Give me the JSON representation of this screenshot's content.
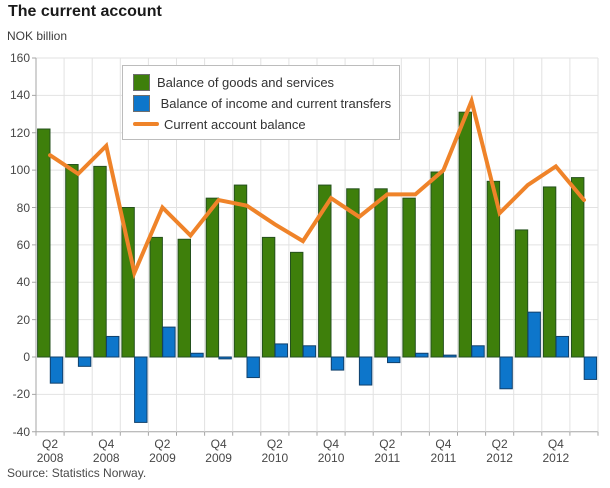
{
  "header": {
    "title": "The current account",
    "unit_label": "NOK billion",
    "source": "Source: Statistics Norway."
  },
  "colors": {
    "goods_services_bar": "#3e7f0b",
    "goods_services_border": "#24511d",
    "income_transfers_bar": "#0d76cb",
    "income_transfers_border": "#11406b",
    "current_account_line": "#ef8329",
    "gridline": "#e2e2e2",
    "axis": "#a6a6a6",
    "tick_text": "#474747",
    "background": "#ffffff"
  },
  "chart_data": {
    "type": "bar",
    "title": "The current account",
    "ylabel": "NOK billion",
    "xlabel": "",
    "ylim": [
      -40,
      160
    ],
    "yticks": [
      160,
      140,
      120,
      100,
      80,
      60,
      40,
      20,
      0,
      -20,
      -40
    ],
    "grid": true,
    "legend_position": "top-left-inset",
    "categories": [
      "Q2 2008",
      "Q3 2008",
      "Q4 2008",
      "Q1 2009",
      "Q2 2009",
      "Q3 2009",
      "Q4 2009",
      "Q1 2010",
      "Q2 2010",
      "Q3 2010",
      "Q4 2010",
      "Q1 2011",
      "Q2 2011",
      "Q3 2011",
      "Q4 2011",
      "Q1 2012",
      "Q2 2012",
      "Q3 2012",
      "Q4 2012",
      "Q1 2013"
    ],
    "xticks": [
      {
        "index": 0,
        "quarter": "Q2",
        "year": "2008"
      },
      {
        "index": 2,
        "quarter": "Q4",
        "year": "2008"
      },
      {
        "index": 4,
        "quarter": "Q2",
        "year": "2009"
      },
      {
        "index": 6,
        "quarter": "Q4",
        "year": "2009"
      },
      {
        "index": 8,
        "quarter": "Q2",
        "year": "2010"
      },
      {
        "index": 10,
        "quarter": "Q4",
        "year": "2010"
      },
      {
        "index": 12,
        "quarter": "Q2",
        "year": "2011"
      },
      {
        "index": 14,
        "quarter": "Q4",
        "year": "2011"
      },
      {
        "index": 16,
        "quarter": "Q2",
        "year": "2012"
      },
      {
        "index": 18,
        "quarter": "Q4",
        "year": "2012"
      }
    ],
    "series": [
      {
        "name": "Balance of goods and services",
        "type": "bar",
        "values": [
          122,
          103,
          102,
          80,
          64,
          63,
          85,
          92,
          64,
          56,
          92,
          90,
          90,
          85,
          99,
          131,
          94,
          68,
          91,
          96
        ]
      },
      {
        "name": " Balance of income and current transfers",
        "type": "bar",
        "values": [
          -14,
          -5,
          11,
          -35,
          16,
          2,
          -1,
          -11,
          7,
          6,
          -7,
          -15,
          -3,
          2,
          1,
          6,
          -17,
          24,
          11,
          -12
        ]
      },
      {
        "name": "Current account balance",
        "type": "line",
        "values": [
          108,
          98,
          113,
          45,
          80,
          65,
          84,
          81,
          71,
          62,
          85,
          75,
          87,
          87,
          100,
          137,
          77,
          92,
          102,
          84
        ]
      }
    ]
  }
}
